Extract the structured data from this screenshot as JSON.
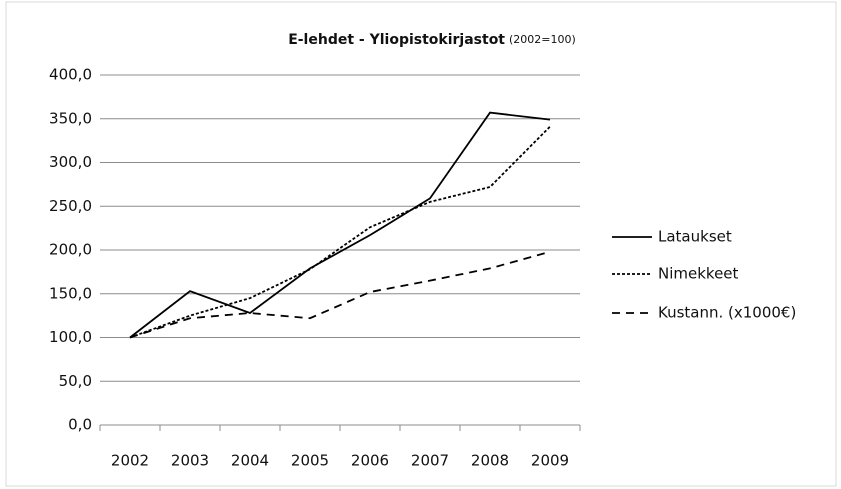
{
  "chart_data": {
    "type": "line",
    "title": "E-lehdet - Yliopistokirjastot",
    "subtitle": "(2002=100)",
    "categories": [
      "2002",
      "2003",
      "2004",
      "2005",
      "2006",
      "2007",
      "2008",
      "2009"
    ],
    "series": [
      {
        "name": "Lataukset",
        "color": "#000000",
        "dash": "solid",
        "values": [
          100,
          153,
          128,
          179,
          217,
          259,
          357,
          349
        ]
      },
      {
        "name": "Nimekkeet",
        "color": "#000000",
        "dash": "dotted",
        "values": [
          100,
          125,
          145,
          178,
          226,
          255,
          272,
          341
        ]
      },
      {
        "name": "Kustann. (x1000€)",
        "color": "#000000",
        "dash": "dashed",
        "values": [
          100,
          122,
          128,
          122,
          152,
          165,
          179,
          198
        ]
      }
    ],
    "ylim": [
      0,
      400
    ],
    "yticks": [
      {
        "value": 0,
        "label": "0,0"
      },
      {
        "value": 50,
        "label": "50,0"
      },
      {
        "value": 100,
        "label": "100,0"
      },
      {
        "value": 150,
        "label": "150,0"
      },
      {
        "value": 200,
        "label": "200,0"
      },
      {
        "value": 250,
        "label": "250,0"
      },
      {
        "value": 300,
        "label": "300,0"
      },
      {
        "value": 350,
        "label": "350,0"
      },
      {
        "value": 400,
        "label": "400,0"
      }
    ],
    "grid": true,
    "legend": "right"
  }
}
